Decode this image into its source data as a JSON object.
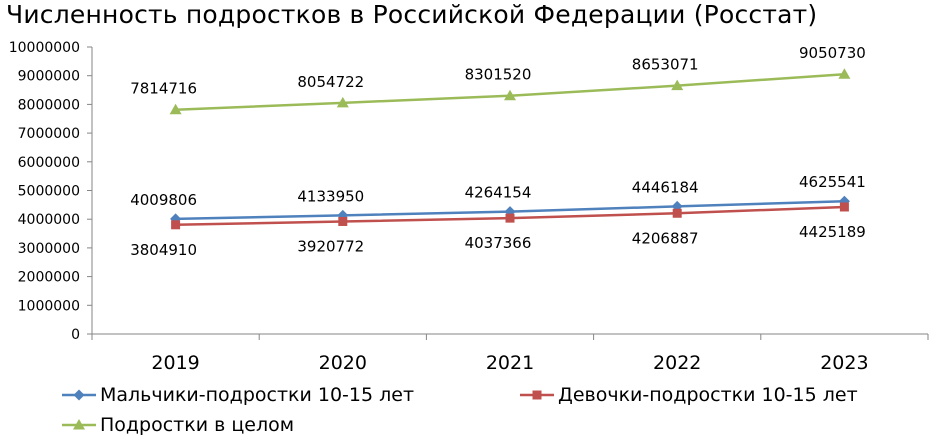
{
  "chart_data": {
    "type": "line",
    "title": "Численность подростков в Российской Федерации (Росстат)",
    "categories": [
      "2019",
      "2020",
      "2021",
      "2022",
      "2023"
    ],
    "ylim": [
      0,
      10000000
    ],
    "y_ticks": [
      "0",
      "1000000",
      "2000000",
      "3000000",
      "4000000",
      "5000000",
      "6000000",
      "7000000",
      "8000000",
      "9000000",
      "10000000"
    ],
    "grid": false,
    "legend_position": "bottom",
    "series": [
      {
        "name": "Мальчики-подростки 10-15 лет",
        "color": "#4F81BD",
        "marker": "diamond",
        "values": [
          4009806,
          4133950,
          4264154,
          4446184,
          4625541
        ],
        "labels": [
          "4009806",
          "4133950",
          "4264154",
          "4446184",
          "4625541"
        ]
      },
      {
        "name": "Девочки-подростки 10-15 лет",
        "color": "#C0504D",
        "marker": "square",
        "values": [
          3804910,
          3920772,
          4037366,
          4206887,
          4425189
        ],
        "labels": [
          "3804910",
          "3920772",
          "4037366",
          "4206887",
          "4425189"
        ]
      },
      {
        "name": "Подростки в целом",
        "color": "#9BBB59",
        "marker": "triangle",
        "values": [
          7814716,
          8054722,
          8301520,
          8653071,
          9050730
        ],
        "labels": [
          "7814716",
          "8054722",
          "8301520",
          "8653071",
          "9050730"
        ]
      }
    ]
  }
}
